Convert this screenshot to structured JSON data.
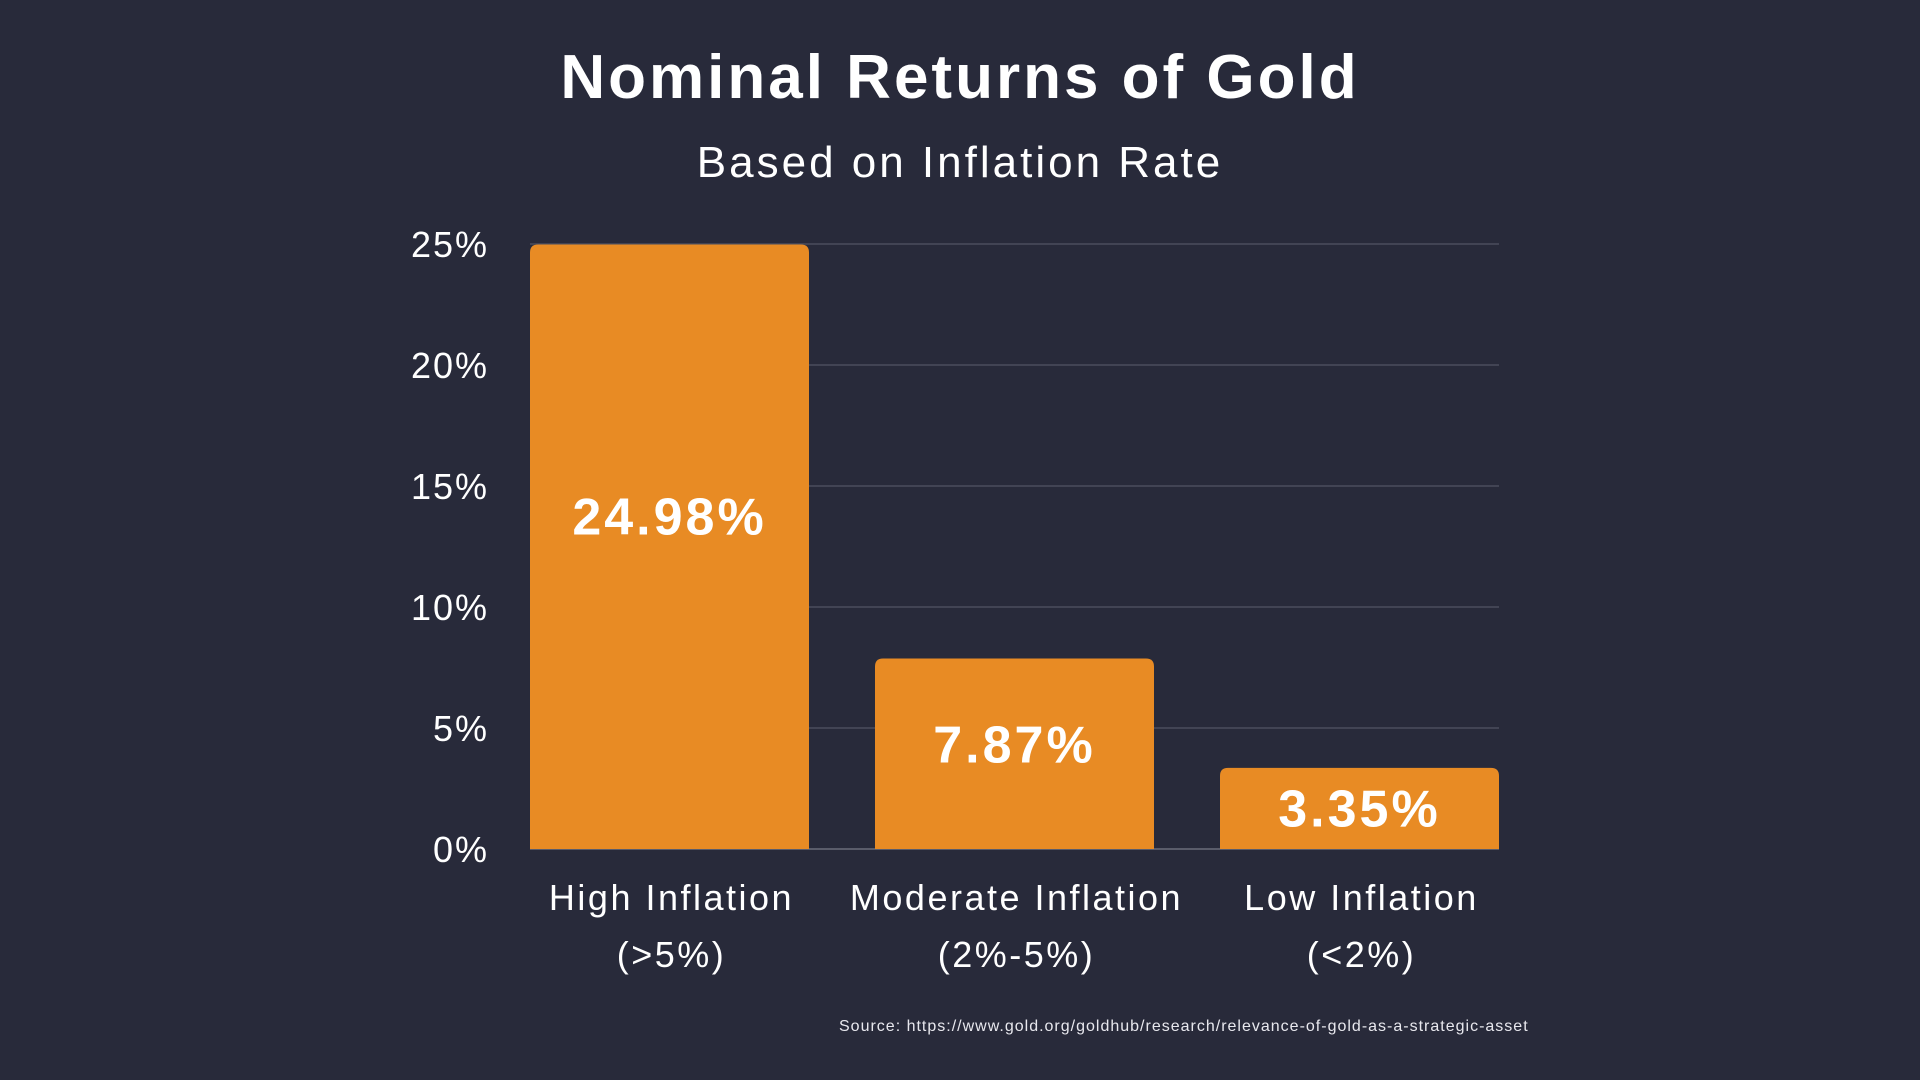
{
  "chart_data": {
    "type": "bar",
    "title": "Nominal Returns of Gold",
    "subtitle": "Based on Inflation Rate",
    "categories": [
      [
        "High Inflation",
        "(>5%)"
      ],
      [
        "Moderate Inflation",
        "(2%-5%)"
      ],
      [
        "Low Inflation",
        "(<2%)"
      ]
    ],
    "values": [
      24.98,
      7.87,
      3.35
    ],
    "data_labels": [
      "24.98%",
      "7.87%",
      "3.35%"
    ],
    "ylim": [
      0,
      25
    ],
    "yticks": [
      0,
      5,
      10,
      15,
      20,
      25
    ],
    "ytick_labels": [
      "0%",
      "5%",
      "10%",
      "15%",
      "20%",
      "25%"
    ],
    "grid": true,
    "xlabel": "",
    "ylabel": "",
    "source": "Source: https://www.gold.org/goldhub/research/relevance-of-gold-as-a-strategic-asset",
    "colors": {
      "bar": "#e88b24",
      "background": "#282a3a",
      "grid": "#4a4c5c"
    }
  }
}
